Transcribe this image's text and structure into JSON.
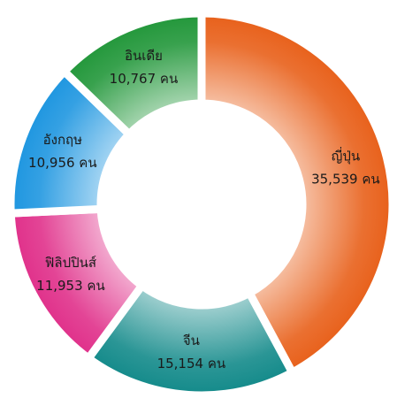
{
  "chart_data": {
    "type": "donut",
    "categories": [
      "ญี่ปุ่น",
      "จีน",
      "ฟิลิปปินส์",
      "อังกฤษ",
      "อินเดีย"
    ],
    "values": [
      35539,
      15154,
      11953,
      10956,
      10767
    ],
    "value_labels": [
      "35,539 คน",
      "15,154 คน",
      "11,953 คน",
      "10,956 คน",
      "10,767 คน"
    ],
    "colors": [
      "#e8601a",
      "#138a8a",
      "#e0308a",
      "#1e96e0",
      "#22973a"
    ]
  }
}
